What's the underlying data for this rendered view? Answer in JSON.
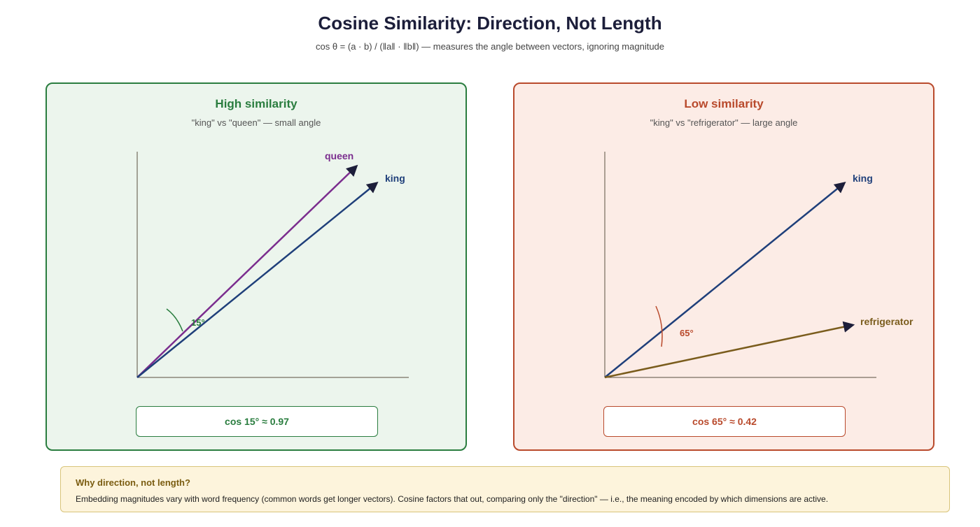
{
  "title": "Cosine Similarity: Direction, Not Length",
  "subtitle": "cos θ = (a · b) / (‖a‖ · ‖b‖) — measures the angle between vectors, ignoring magnitude",
  "panels": {
    "high": {
      "heading": "High similarity",
      "subheading": "\"king\" vs \"queen\" — small angle",
      "vector_a_label": "queen",
      "vector_b_label": "king",
      "angle_label": "15°",
      "angle_degrees": 15,
      "cos_text": "cos 15° ≈ 0.97",
      "colors": {
        "accent": "#2a7d3f",
        "vector_a": "#7b2d8e",
        "vector_b": "#1f3f7a"
      }
    },
    "low": {
      "heading": "Low similarity",
      "subheading": "\"king\" vs \"refrigerator\" — large angle",
      "vector_a_label": "king",
      "vector_b_label": "refrigerator",
      "angle_label": "65°",
      "angle_degrees": 65,
      "cos_text": "cos 65° ≈ 0.42",
      "colors": {
        "accent": "#b94a2c",
        "vector_a": "#1f3f7a",
        "vector_b": "#7a5c1c"
      }
    }
  },
  "note": {
    "title": "Why direction, not length?",
    "body": "Embedding magnitudes vary with word frequency (common words get longer vectors). Cosine factors that out, comparing only the \"direction\" — i.e., the meaning encoded by which dimensions are active."
  },
  "colors": {
    "arrowhead": "#1c1e3a",
    "axis": "#5a5040"
  }
}
